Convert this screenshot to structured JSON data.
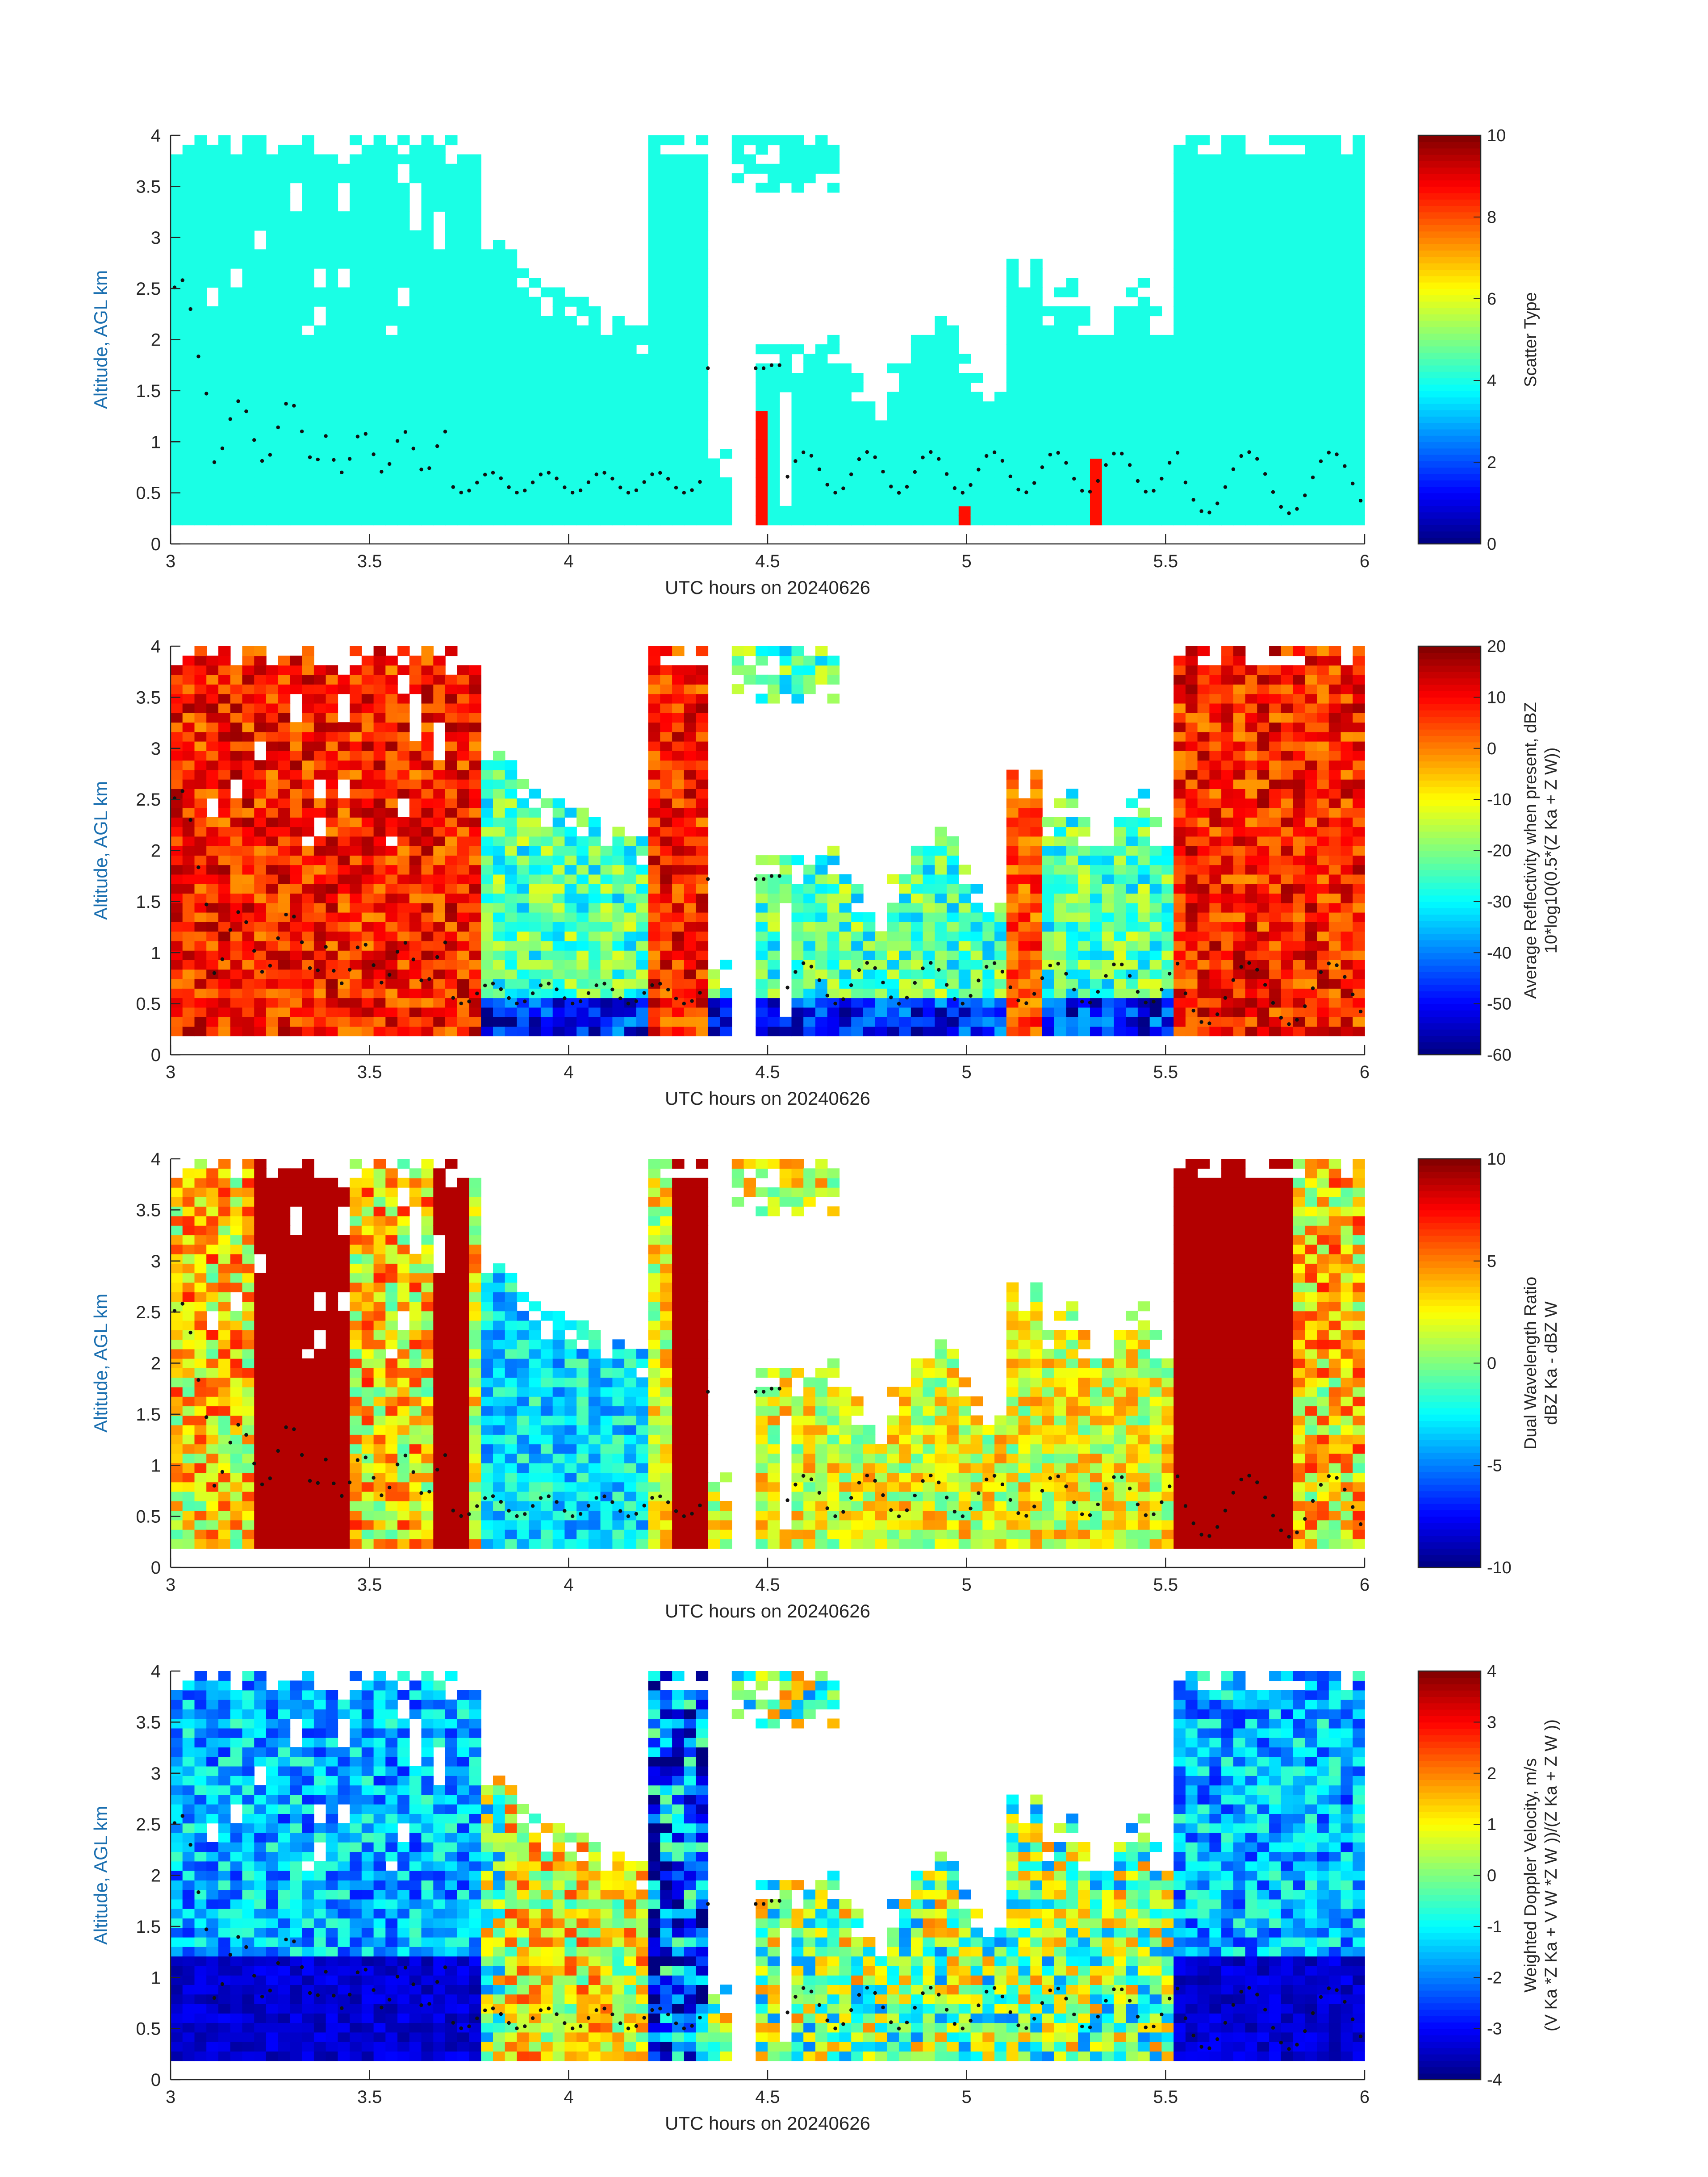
{
  "chart_data": [
    {
      "type": "heatmap",
      "ylabel": "Altitude, AGL km",
      "xlabel": "UTC hours on 20240626",
      "x_ticks": [
        "3",
        "3.5",
        "4",
        "4.5",
        "5",
        "5.5",
        "6"
      ],
      "y_ticks": [
        "0",
        "0.5",
        "1",
        "1.5",
        "2",
        "2.5",
        "3",
        "3.5",
        "4"
      ],
      "xlim": [
        3,
        6
      ],
      "ylim": [
        0,
        4
      ],
      "colorbar": {
        "label_lines": [
          "Scatter Type"
        ],
        "ticks": [
          "0",
          "2",
          "4",
          "6",
          "8",
          "10"
        ],
        "range": [
          0,
          10
        ],
        "colormap": "jet"
      }
    },
    {
      "type": "heatmap",
      "ylabel": "Altitude, AGL km",
      "xlabel": "UTC hours on 20240626",
      "x_ticks": [
        "3",
        "3.5",
        "4",
        "4.5",
        "5",
        "5.5",
        "6"
      ],
      "y_ticks": [
        "0",
        "0.5",
        "1",
        "1.5",
        "2",
        "2.5",
        "3",
        "3.5",
        "4"
      ],
      "xlim": [
        3,
        6
      ],
      "ylim": [
        0,
        4
      ],
      "colorbar": {
        "label_lines": [
          "Average Reflectivity when present, dBZ",
          "10*log10(0.5*(Z Ka + Z W))"
        ],
        "ticks": [
          "-60",
          "-50",
          "-40",
          "-30",
          "-20",
          "-10",
          "0",
          "10",
          "20"
        ],
        "range": [
          -60,
          20
        ],
        "colormap": "jet"
      }
    },
    {
      "type": "heatmap",
      "ylabel": "Altitude, AGL km",
      "xlabel": "UTC hours on 20240626",
      "x_ticks": [
        "3",
        "3.5",
        "4",
        "4.5",
        "5",
        "5.5",
        "6"
      ],
      "y_ticks": [
        "0",
        "0.5",
        "1",
        "1.5",
        "2",
        "2.5",
        "3",
        "3.5",
        "4"
      ],
      "xlim": [
        3,
        6
      ],
      "ylim": [
        0,
        4
      ],
      "colorbar": {
        "label_lines": [
          "Dual Wavelength Ratio",
          "dBZ Ka - dBZ W"
        ],
        "ticks": [
          "-10",
          "-5",
          "0",
          "5",
          "10"
        ],
        "range": [
          -10,
          10
        ],
        "colormap": "jet"
      }
    },
    {
      "type": "heatmap",
      "ylabel": "Altitude, AGL km",
      "xlabel": "UTC hours on 20240626",
      "x_ticks": [
        "3",
        "3.5",
        "4",
        "4.5",
        "5",
        "5.5",
        "6"
      ],
      "y_ticks": [
        "0",
        "0.5",
        "1",
        "1.5",
        "2",
        "2.5",
        "3",
        "3.5",
        "4"
      ],
      "xlim": [
        3,
        6
      ],
      "ylim": [
        0,
        4
      ],
      "colorbar": {
        "label_lines": [
          "Weighted Doppler Velocity, m/s",
          "(V Ka *Z Ka + V W *Z W ))/(Z Ka + Z W ))"
        ],
        "ticks": [
          "-4",
          "-3",
          "-2",
          "-1",
          "0",
          "1",
          "2",
          "3",
          "4"
        ],
        "range": [
          -4,
          4
        ],
        "colormap": "jet"
      }
    }
  ]
}
